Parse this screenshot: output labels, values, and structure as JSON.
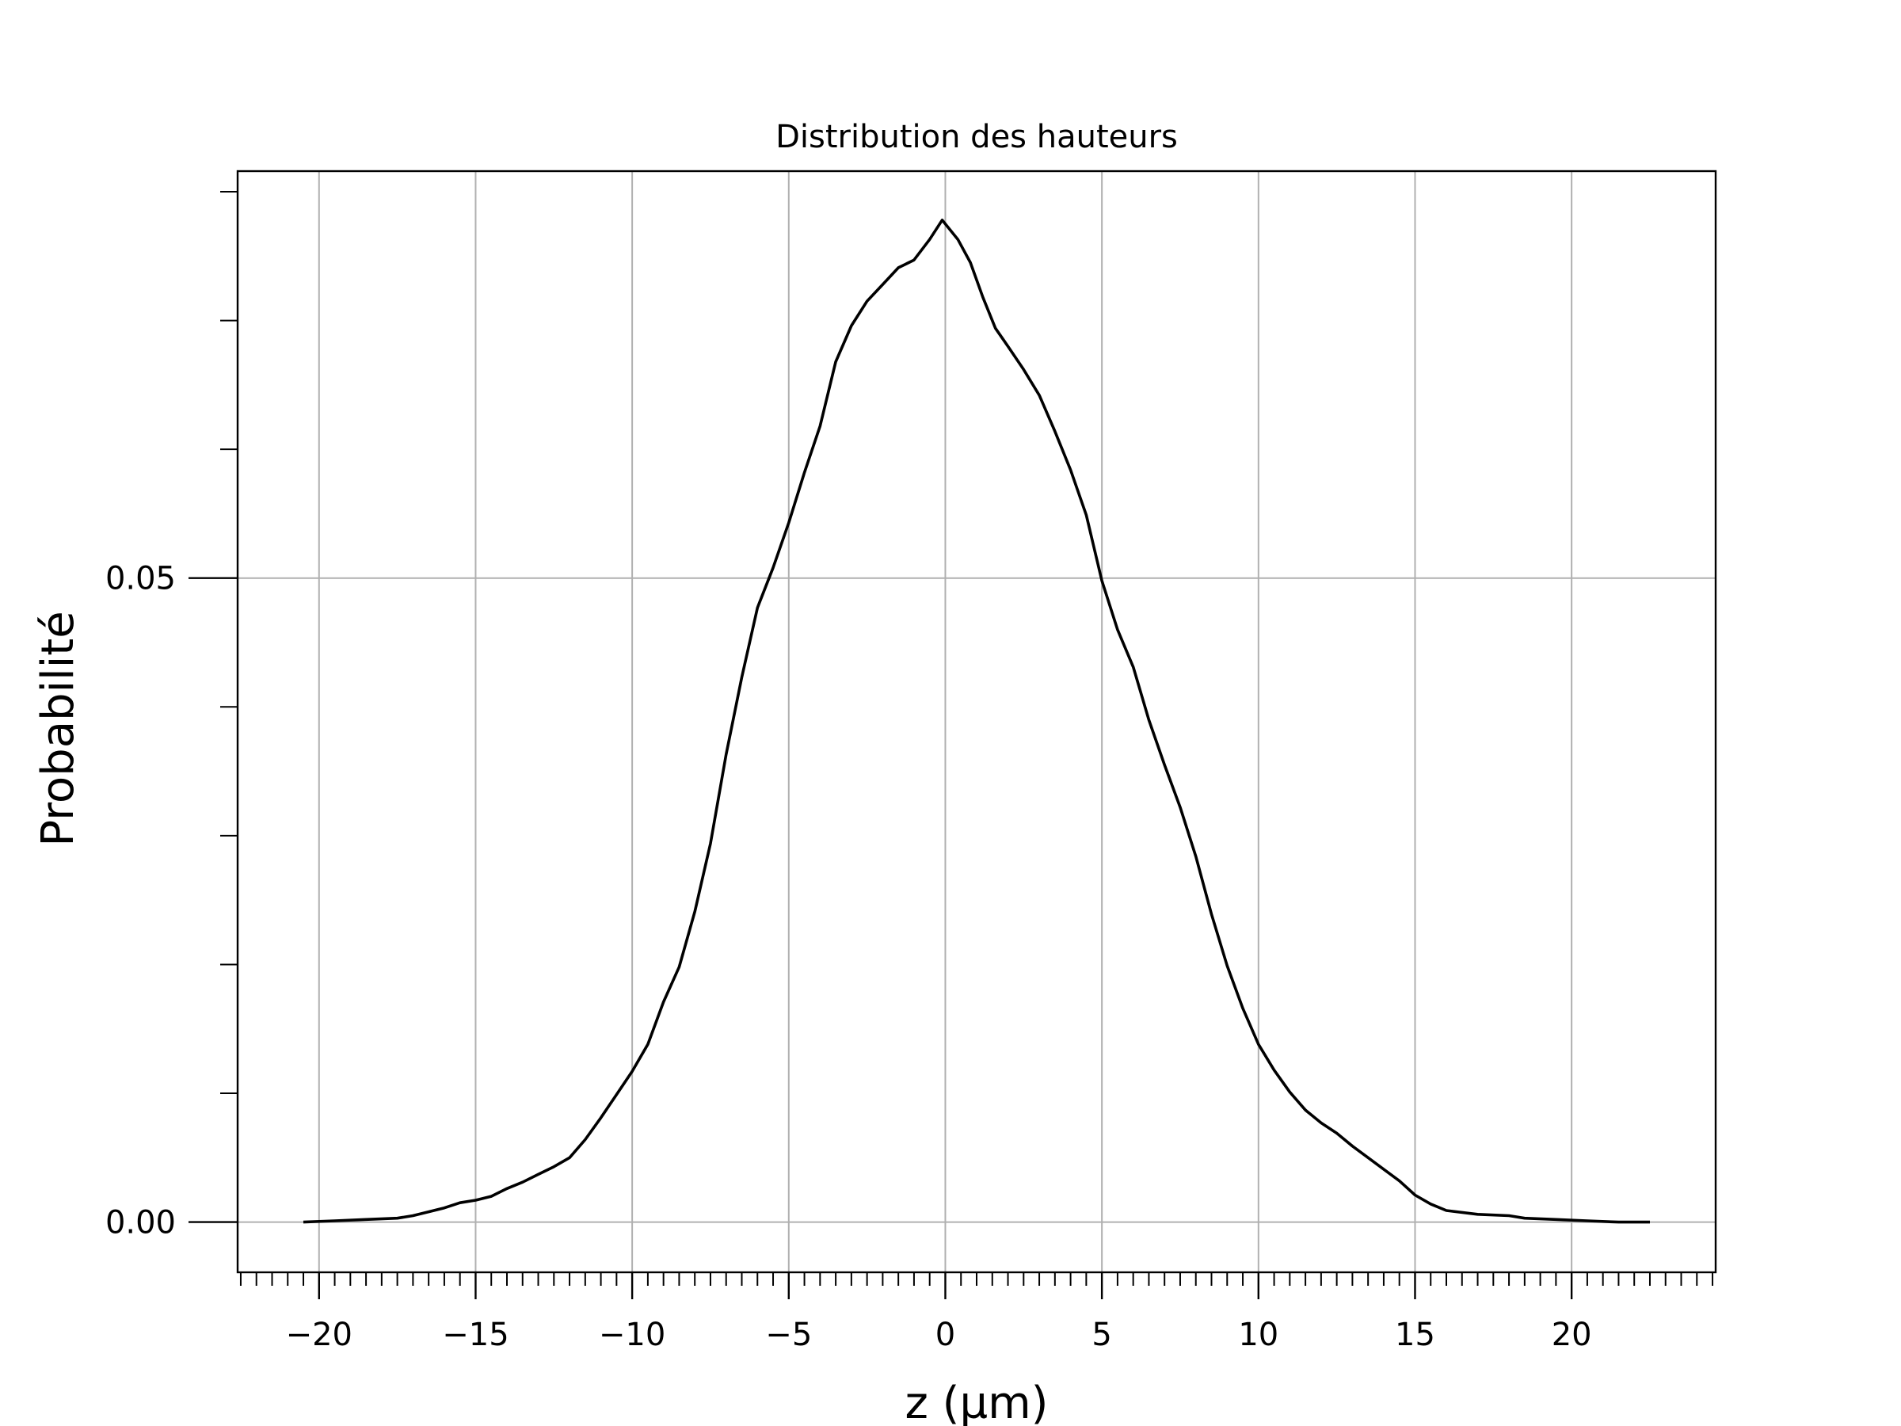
{
  "chart_data": {
    "type": "line",
    "title": "Distribution des hauteurs",
    "xlabel": "z (µm)",
    "ylabel": "Probabilité",
    "xlim": [
      -22.6,
      24.6
    ],
    "ylim": [
      -0.0039,
      0.0816
    ],
    "x_ticks": [
      -20,
      -15,
      -10,
      -5,
      0,
      5,
      10,
      15,
      20
    ],
    "x_tick_labels": [
      "−20",
      "−15",
      "−10",
      "−5",
      "0",
      "5",
      "10",
      "15",
      "20"
    ],
    "x_minor_step": 0.5,
    "y_major_ticks": [
      0.0,
      0.05
    ],
    "y_tick_labels": [
      "0.00",
      "0.05"
    ],
    "y_minor_ticks": [
      0.01,
      0.02,
      0.03,
      0.04,
      0.06,
      0.07,
      0.08
    ],
    "grid": true,
    "line_color": "#000000",
    "grid_color": "#b0b0b0",
    "series": [
      {
        "x": [
          -20.5,
          -19.5,
          -18.5,
          -17.5,
          -17.0,
          -16.5,
          -16.0,
          -15.5,
          -15.0,
          -14.5,
          -14.0,
          -13.5,
          -13.0,
          -12.5,
          -12.0,
          -11.5,
          -11.0,
          -10.5,
          -10.0,
          -9.5,
          -9.0,
          -8.5,
          -8.0,
          -7.5,
          -7.0,
          -6.5,
          -6.0,
          -5.5,
          -5.0,
          -4.5,
          -4.0,
          -3.5,
          -3.0,
          -2.5,
          -2.0,
          -1.5,
          -1.0,
          -0.5,
          -0.1,
          0.4,
          0.8,
          1.2,
          1.6,
          2.0,
          2.5,
          3.0,
          3.5,
          4.0,
          4.5,
          5.0,
          5.5,
          6.0,
          6.5,
          7.0,
          7.5,
          8.0,
          8.5,
          9.0,
          9.5,
          10.0,
          10.5,
          11.0,
          11.5,
          12.0,
          12.5,
          13.0,
          13.5,
          14.0,
          14.5,
          15.0,
          15.5,
          16.0,
          17.0,
          18.0,
          18.5,
          19.5,
          20.5,
          21.5,
          22.5
        ],
        "y": [
          0.0,
          0.0001,
          0.0002,
          0.0003,
          0.0005,
          0.0008,
          0.0011,
          0.0015,
          0.0017,
          0.002,
          0.0026,
          0.0031,
          0.0037,
          0.0043,
          0.005,
          0.0064,
          0.0081,
          0.0099,
          0.0117,
          0.0138,
          0.0171,
          0.0198,
          0.0241,
          0.0294,
          0.0363,
          0.0423,
          0.0477,
          0.0508,
          0.0543,
          0.0582,
          0.0618,
          0.0668,
          0.0696,
          0.0715,
          0.0728,
          0.0741,
          0.0747,
          0.0763,
          0.0778,
          0.0763,
          0.0745,
          0.0718,
          0.0694,
          0.068,
          0.0662,
          0.0642,
          0.0614,
          0.0584,
          0.0549,
          0.0498,
          0.046,
          0.0431,
          0.039,
          0.0355,
          0.0322,
          0.0284,
          0.0239,
          0.0199,
          0.0166,
          0.0138,
          0.0118,
          0.0101,
          0.0087,
          0.0077,
          0.0069,
          0.0059,
          0.005,
          0.0041,
          0.0032,
          0.0021,
          0.0014,
          0.0009,
          0.0006,
          0.0005,
          0.0003,
          0.0002,
          0.0001,
          0.0,
          0.0
        ]
      }
    ]
  }
}
